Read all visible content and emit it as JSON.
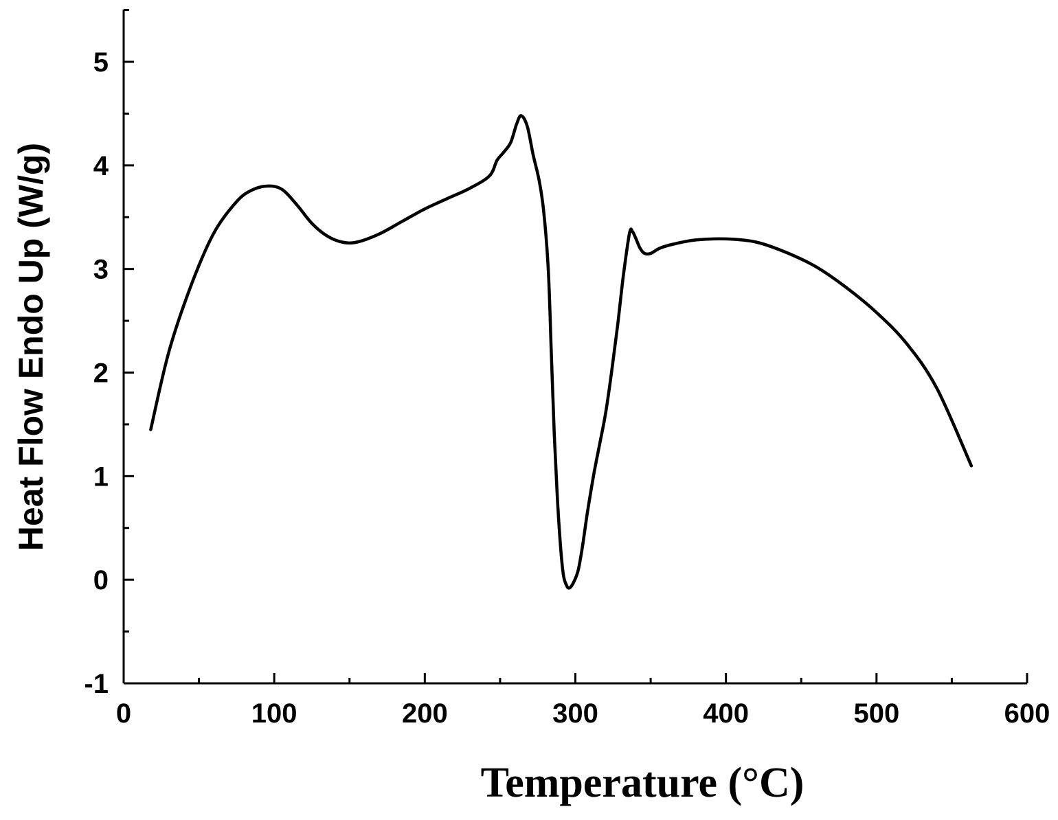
{
  "chart_data": {
    "type": "line",
    "title": "",
    "xlabel": "Temperature (°C)",
    "ylabel": "Heat Flow Endo Up (W/g)",
    "xlim": [
      0,
      600
    ],
    "ylim": [
      -1,
      5.5
    ],
    "xticks": [
      0,
      100,
      200,
      300,
      400,
      500,
      600
    ],
    "yticks": [
      -1,
      0,
      1,
      2,
      3,
      4,
      5
    ],
    "grid": false,
    "legend": "none",
    "series": [
      {
        "x": [
          18,
          30,
          45,
          60,
          75,
          85,
          95,
          105,
          115,
          125,
          135,
          145,
          155,
          170,
          185,
          200,
          215,
          230,
          243,
          248,
          252,
          257,
          261,
          264,
          268,
          272,
          276,
          279,
          282,
          284,
          286,
          288,
          290,
          292,
          294,
          296,
          299,
          302,
          305,
          308,
          312,
          316,
          320,
          324,
          328,
          332,
          336,
          338,
          340,
          343,
          346,
          350,
          356,
          365,
          380,
          400,
          420,
          440,
          460,
          480,
          500,
          520,
          540,
          563
        ],
        "y": [
          1.45,
          2.2,
          2.85,
          3.35,
          3.65,
          3.76,
          3.8,
          3.77,
          3.62,
          3.44,
          3.32,
          3.26,
          3.26,
          3.34,
          3.46,
          3.58,
          3.68,
          3.78,
          3.9,
          4.05,
          4.12,
          4.22,
          4.4,
          4.48,
          4.38,
          4.1,
          3.85,
          3.55,
          3.0,
          2.2,
          1.4,
          0.8,
          0.35,
          0.05,
          -0.05,
          -0.08,
          -0.02,
          0.1,
          0.35,
          0.65,
          1.0,
          1.3,
          1.6,
          2.0,
          2.45,
          2.95,
          3.35,
          3.36,
          3.3,
          3.2,
          3.15,
          3.15,
          3.2,
          3.24,
          3.28,
          3.29,
          3.26,
          3.16,
          3.02,
          2.82,
          2.58,
          2.28,
          1.85,
          1.1
        ]
      }
    ]
  }
}
